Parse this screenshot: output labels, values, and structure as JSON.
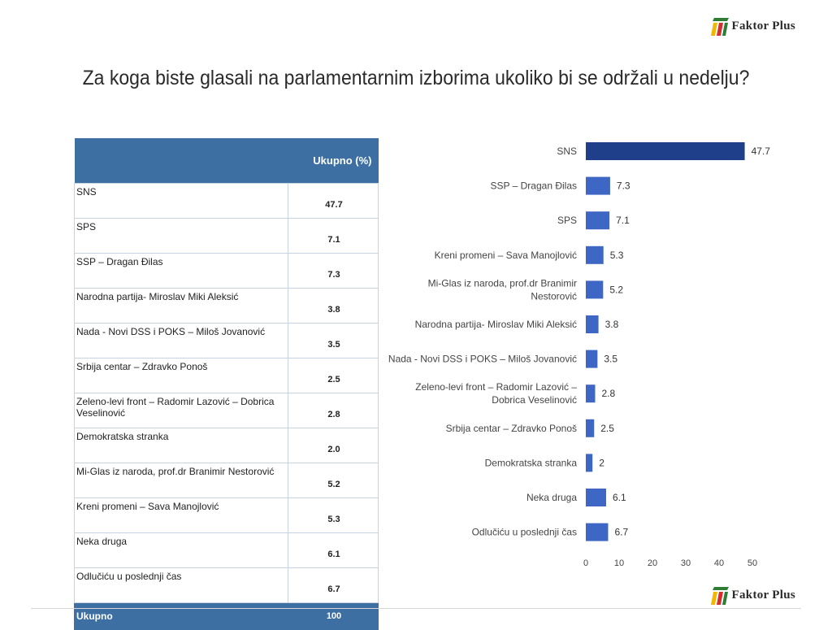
{
  "brand": "Faktor Plus",
  "title": "Za koga biste glasali na parlamentarnim izborima ukoliko bi se održali u nedelju?",
  "table": {
    "header": "Ukupno (%)",
    "rows": [
      {
        "name": "SNS",
        "value": "47.7"
      },
      {
        "name": "SPS",
        "value": "7.1"
      },
      {
        "name": "SSP – Dragan Đilas",
        "value": "7.3"
      },
      {
        "name": "Narodna partija- Miroslav Miki Aleksić",
        "value": "3.8"
      },
      {
        "name": "Nada - Novi DSS i POKS – Miloš Jovanović",
        "value": "3.5"
      },
      {
        "name": "Srbija centar – Zdravko Ponoš",
        "value": "2.5"
      },
      {
        "name": "Zeleno-levi front – Radomir Lazović – Dobrica Veselinović",
        "value": "2.8"
      },
      {
        "name": "Demokratska stranka",
        "value": "2.0"
      },
      {
        "name": "Mi-Glas iz naroda, prof.dr Branimir Nestorović",
        "value": "5.2"
      },
      {
        "name": "Kreni promeni – Sava Manojlović",
        "value": "5.3"
      },
      {
        "name": "Neka druga",
        "value": "6.1"
      },
      {
        "name": "Odlučiću u poslednji čas",
        "value": "6.7"
      }
    ],
    "total": {
      "name": "Ukupno",
      "value": "100"
    }
  },
  "chart_data": {
    "type": "bar",
    "orientation": "horizontal",
    "categories": [
      "SNS",
      "SSP – Dragan Đilas",
      "SPS",
      "Kreni promeni – Sava Manojlović",
      "Mi-Glas iz naroda, prof.dr Branimir Nestorović",
      "Narodna partija- Miroslav Miki Aleksić",
      "Nada - Novi DSS i POKS – Miloš Jovanović",
      "Zeleno-levi front – Radomir Lazović – Dobrica Veselinović",
      "Srbija centar – Zdravko Ponoš",
      "Demokratska stranka",
      "Neka druga",
      "Odlučiću u poslednji čas"
    ],
    "values": [
      47.7,
      7.3,
      7.1,
      5.3,
      5.2,
      3.8,
      3.5,
      2.8,
      2.5,
      2,
      6.1,
      6.7
    ],
    "xlim": [
      0,
      50
    ],
    "xticks": [
      0,
      10,
      20,
      30,
      40,
      50
    ],
    "grid": false,
    "bar_color": "#3e66c4",
    "highlight_color": "#1f3f8a"
  }
}
